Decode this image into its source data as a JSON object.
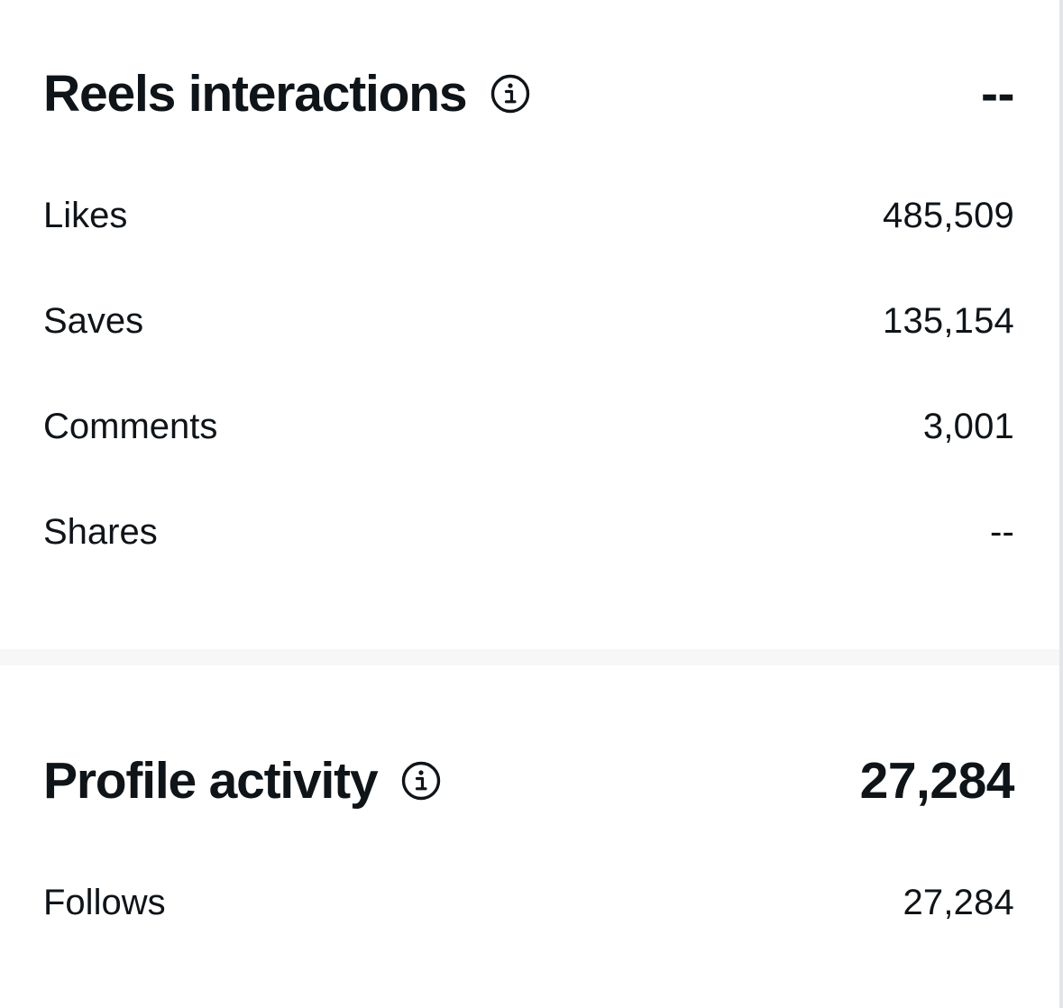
{
  "reels_interactions": {
    "title": "Reels interactions",
    "total": "--",
    "rows": [
      {
        "label": "Likes",
        "value": "485,509"
      },
      {
        "label": "Saves",
        "value": "135,154"
      },
      {
        "label": "Comments",
        "value": "3,001"
      },
      {
        "label": "Shares",
        "value": "--"
      }
    ]
  },
  "profile_activity": {
    "title": "Profile activity",
    "total": "27,284",
    "rows": [
      {
        "label": "Follows",
        "value": "27,284"
      }
    ]
  },
  "icons": {
    "info": "info-circle-icon"
  },
  "colors": {
    "text": "#0f1419",
    "divider": "#f7f7f7",
    "background": "#ffffff"
  }
}
